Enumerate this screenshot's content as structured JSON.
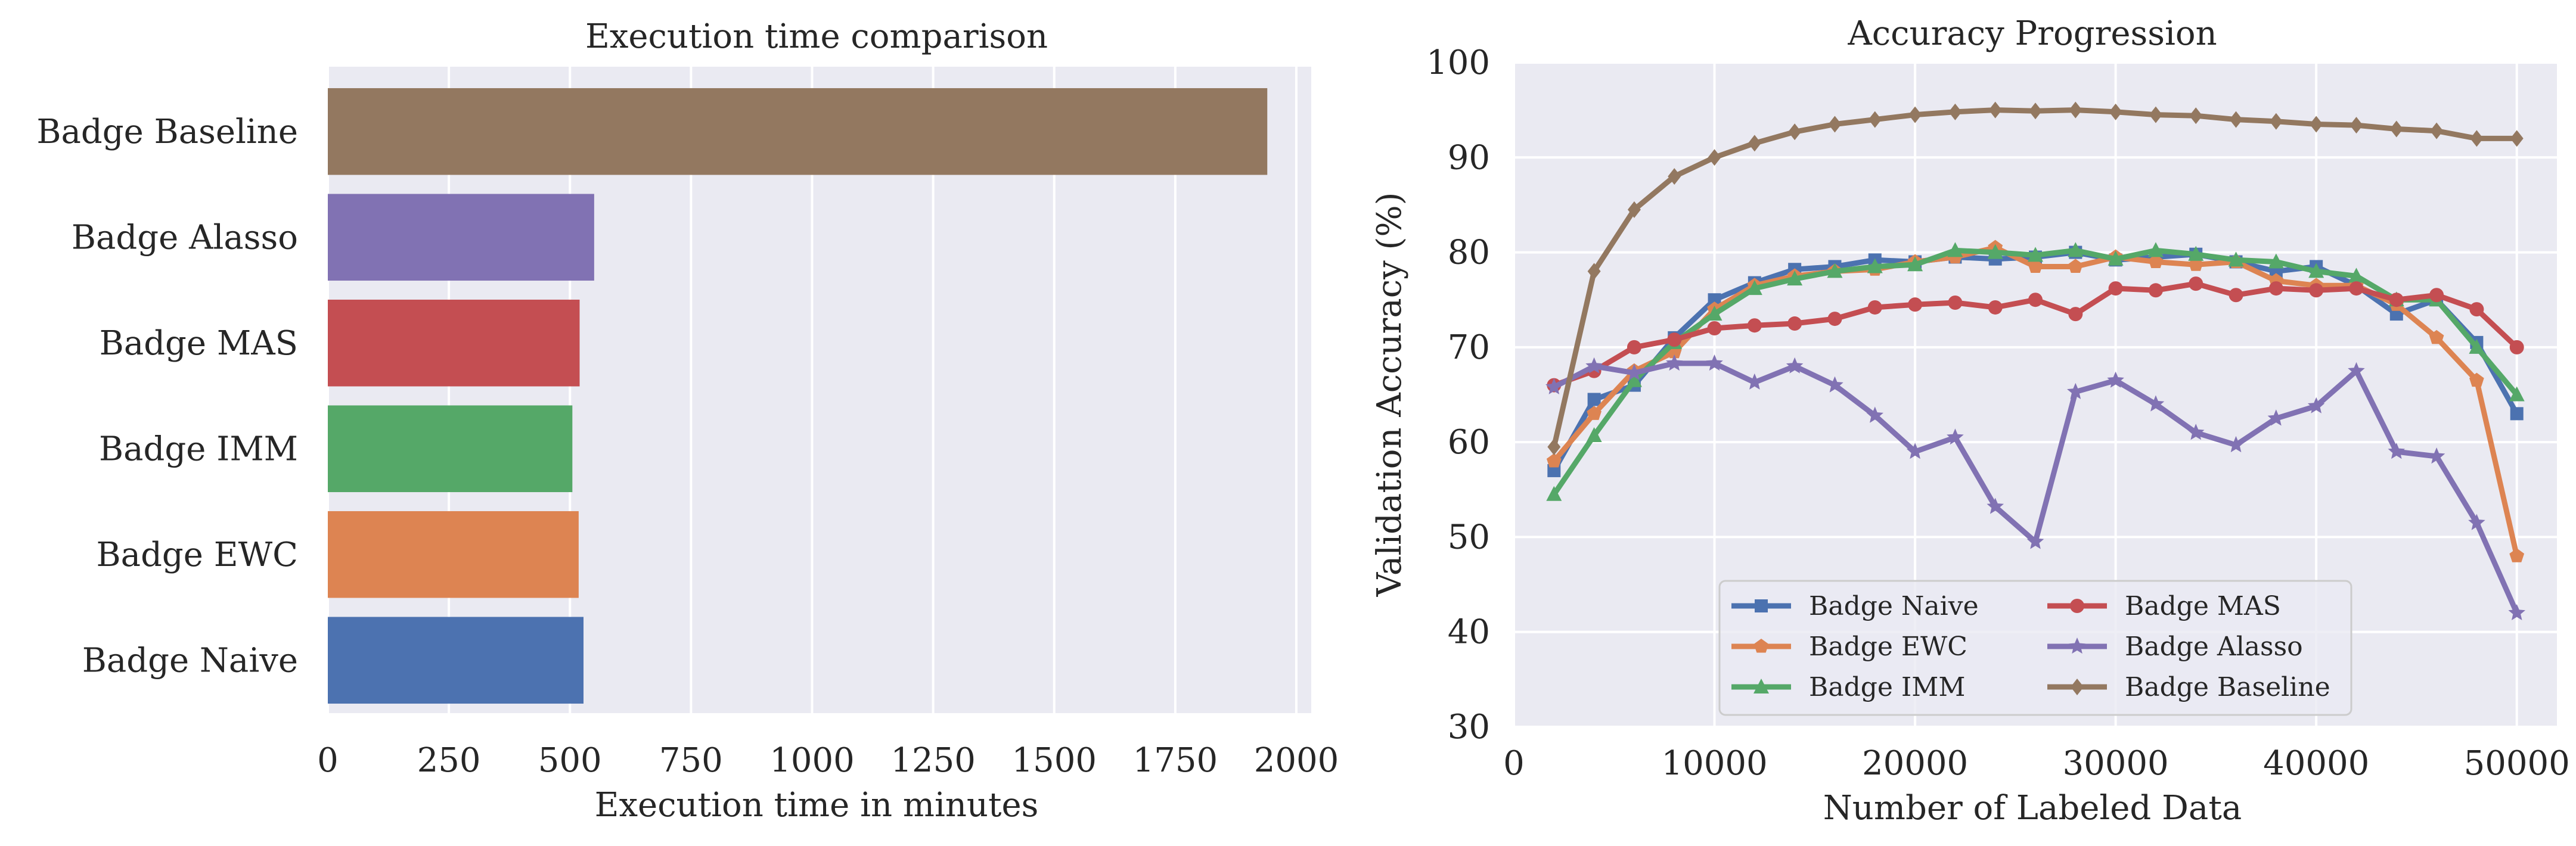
{
  "chart_data": [
    {
      "type": "bar",
      "orientation": "horizontal",
      "title": "Execution time comparison",
      "xlabel": "Execution time in minutes",
      "ylabel": "",
      "xlim": [
        0,
        2000
      ],
      "xticks": [
        0,
        250,
        500,
        750,
        1000,
        1250,
        1500,
        1750,
        2000
      ],
      "categories": [
        "Badge Baseline",
        "Badge Alasso",
        "Badge MAS",
        "Badge IMM",
        "Badge EWC",
        "Badge Naive"
      ],
      "values": [
        1940,
        550,
        520,
        505,
        518,
        528
      ],
      "colors": [
        "#937860",
        "#8172b3",
        "#c44e52",
        "#55a868",
        "#dd8452",
        "#4c72b0"
      ],
      "grid": true
    },
    {
      "type": "line",
      "title": "Accuracy Progression",
      "xlabel": "Number of Labeled Data",
      "ylabel": "Validation Accuracy (%)",
      "xlim": [
        0,
        52000
      ],
      "ylim": [
        30,
        100
      ],
      "xticks": [
        0,
        10000,
        20000,
        30000,
        40000,
        50000
      ],
      "yticks": [
        30,
        40,
        50,
        60,
        70,
        80,
        90,
        100
      ],
      "x": [
        2000,
        4000,
        6000,
        8000,
        10000,
        12000,
        14000,
        16000,
        18000,
        20000,
        22000,
        24000,
        26000,
        28000,
        30000,
        32000,
        34000,
        36000,
        38000,
        40000,
        42000,
        44000,
        46000,
        48000,
        50000
      ],
      "grid": true,
      "legend_position": "lower-center",
      "series": [
        {
          "name": "Badge Naive",
          "color": "#4c72b0",
          "marker": "square",
          "values": [
            57,
            64.5,
            66,
            71,
            75,
            76.8,
            78.2,
            78.5,
            79.2,
            79,
            79.5,
            79.3,
            79.5,
            80,
            79.2,
            79.5,
            79.8,
            79,
            78,
            78.5,
            76.5,
            73.5,
            75,
            70.5,
            63
          ]
        },
        {
          "name": "Badge EWC",
          "color": "#dd8452",
          "marker": "pentagon",
          "values": [
            58,
            63,
            67.5,
            69.5,
            74,
            76.5,
            77.5,
            78,
            78.2,
            79,
            79.5,
            80.5,
            78.5,
            78.5,
            79.5,
            79,
            78.7,
            79,
            77,
            76.5,
            76.5,
            74.5,
            71,
            66.5,
            48
          ]
        },
        {
          "name": "Badge IMM",
          "color": "#55a868",
          "marker": "triangle",
          "values": [
            54.5,
            60.7,
            66.5,
            70.5,
            73.5,
            76.2,
            77.2,
            78,
            78.5,
            78.7,
            80.2,
            80,
            79.7,
            80.2,
            79.3,
            80.2,
            79.8,
            79.2,
            79,
            78,
            77.5,
            75,
            75,
            70,
            65
          ]
        },
        {
          "name": "Badge MAS",
          "color": "#c44e52",
          "marker": "circle",
          "values": [
            66,
            67.5,
            70,
            70.8,
            72,
            72.3,
            72.5,
            73,
            74.2,
            74.5,
            74.7,
            74.2,
            75,
            73.5,
            76.2,
            76,
            76.7,
            75.5,
            76.2,
            76,
            76.2,
            75,
            75.5,
            74,
            70
          ]
        },
        {
          "name": "Badge Alasso",
          "color": "#8172b3",
          "marker": "star",
          "values": [
            65.8,
            68,
            67.3,
            68.3,
            68.3,
            66.3,
            68,
            66,
            62.8,
            59,
            60.5,
            53.2,
            49.5,
            65.3,
            66.5,
            64,
            61,
            59.7,
            62.5,
            63.8,
            67.5,
            59,
            58.5,
            51.5,
            42
          ]
        },
        {
          "name": "Badge Baseline",
          "color": "#937860",
          "marker": "diamond",
          "values": [
            59.5,
            78,
            84.5,
            88,
            90,
            91.5,
            92.7,
            93.5,
            94,
            94.5,
            94.8,
            95,
            94.9,
            95,
            94.8,
            94.5,
            94.4,
            94,
            93.8,
            93.5,
            93.4,
            93,
            92.8,
            92,
            92
          ]
        }
      ]
    }
  ]
}
